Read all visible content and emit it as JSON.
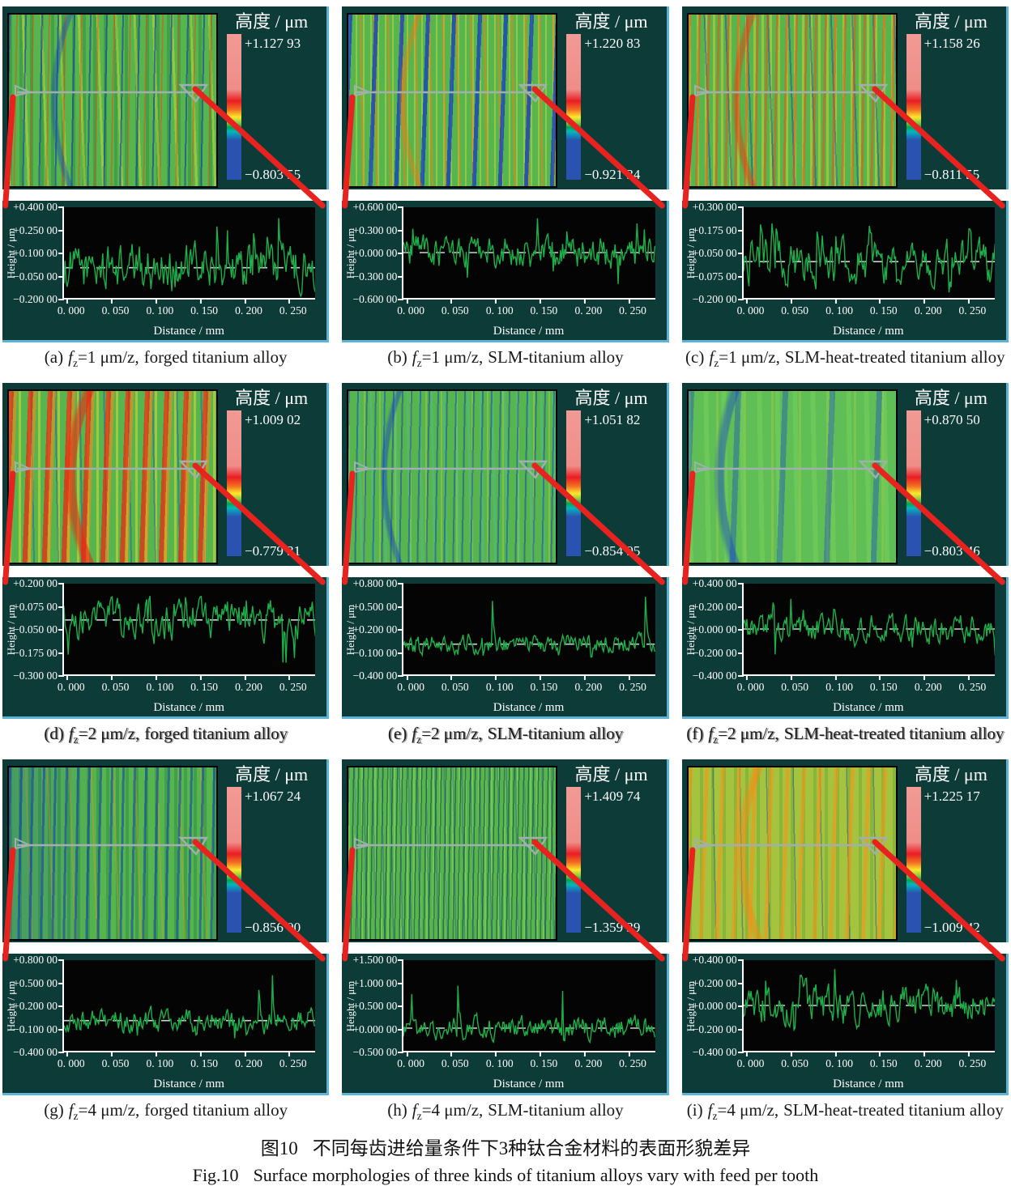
{
  "figure": {
    "caption_zh_label": "图10",
    "caption_zh_text": "不同每齿进给量条件下3种钛合金材料的表面形貌差异",
    "caption_en_label": "Fig.10",
    "caption_en_text": "Surface morphologies of three kinds of titanium alloys vary with feed per tooth"
  },
  "symbols": {
    "f": "f",
    "fsub": "z"
  },
  "colors": {
    "panel_background": "#0c3b38",
    "plot_background": "#040404",
    "trace_green": "#1db04a",
    "connector_red": "#e8231f",
    "colorbar_top_pink": "#f29a95",
    "colorbar_bottom_blue": "#2a52b0",
    "panel_edge_blue": "#5cb3d6"
  },
  "panels": [
    {
      "label": "(a)",
      "feed": "=1 μm/z,",
      "material": "forged titanium alloy",
      "colorbar": {
        "title": "高度 / μm",
        "max": "+1.127 93",
        "min": "−0.803 55"
      },
      "profile": {
        "ylabel": "Height / μm",
        "xlabel": "Distance / mm",
        "yticks": [
          "+0.400 00",
          "+0.250 00",
          "+0.100 00",
          "−0.050 00",
          "−0.200 00"
        ],
        "xticks": [
          "0. 000",
          "0. 050",
          "0. 100",
          "0. 150",
          "0. 200",
          "0. 250"
        ],
        "ylim": [
          0.4,
          -0.2
        ],
        "amp": 0.09,
        "peak_up": 0.33,
        "peak_down": 0.18
      }
    },
    {
      "label": "(b)",
      "feed": "=1 μm/z,",
      "material": "SLM-titanium alloy",
      "colorbar": {
        "title": "高度 / μm",
        "max": "+1.220 83",
        "min": "−0.921 34"
      },
      "profile": {
        "ylabel": "Height / μm",
        "xlabel": "Distance / mm",
        "yticks": [
          "+0.600 00",
          "+0.300 00",
          "+0.000 00",
          "−0.300 00",
          "−0.600 00"
        ],
        "xticks": [
          "0. 000",
          "0. 050",
          "0. 100",
          "0. 150",
          "0. 200",
          "0. 250"
        ],
        "ylim": [
          0.6,
          -0.6
        ],
        "amp": 0.13,
        "peak_up": 0.46,
        "peak_down": 0.45
      }
    },
    {
      "label": "(c)",
      "feed": "=1 μm/z,",
      "material": "SLM-heat-treated titanium alloy",
      "colorbar": {
        "title": "高度 / μm",
        "max": "+1.158 26",
        "min": "−0.811 55"
      },
      "profile": {
        "ylabel": "Height / μm",
        "xlabel": "Distance / mm",
        "yticks": [
          "+0.300 00",
          "+0.175 00",
          "+0.050 00",
          "−0.075 00",
          "−0.200 00"
        ],
        "xticks": [
          "0. 000",
          "0. 050",
          "0. 100",
          "0. 150",
          "0. 200",
          "0. 250"
        ],
        "ylim": [
          0.3,
          -0.2
        ],
        "amp": 0.07,
        "peak_up": 0.25,
        "peak_down": 0.17
      }
    },
    {
      "label": "(d)",
      "feed": "=2 μm/z,",
      "material": "forged titanium alloy",
      "colorbar": {
        "title": "高度 / μm",
        "max": "+1.009 02",
        "min": "−0.779 31"
      },
      "profile": {
        "ylabel": "Height / μm",
        "xlabel": "Distance / mm",
        "yticks": [
          "+0.200 00",
          "+0.075 00",
          "−0.050 00",
          "−0.175 00",
          "−0.300 00"
        ],
        "xticks": [
          "0. 000",
          "0. 050",
          "0. 100",
          "0. 150",
          "0. 200",
          "0. 250"
        ],
        "ylim": [
          0.2,
          -0.3
        ],
        "amp": 0.06,
        "peak_up": 0.13,
        "peak_down": 0.24
      }
    },
    {
      "label": "(e)",
      "feed": "=2 μm/z,",
      "material": "SLM-titanium alloy",
      "colorbar": {
        "title": "高度 / μm",
        "max": "+1.051 82",
        "min": "−0.854 95"
      },
      "profile": {
        "ylabel": "Height / μm",
        "xlabel": "Distance / mm",
        "yticks": [
          "+0.800 00",
          "+0.500 00",
          "+0.200 00",
          "−0.100 00",
          "−0.400 00"
        ],
        "xticks": [
          "0. 000",
          "0. 050",
          "0. 100",
          "0. 150",
          "0. 200",
          "0. 250"
        ],
        "ylim": [
          0.8,
          -0.4
        ],
        "amp": 0.08,
        "peak_up": 0.66,
        "peak_down": 0.2
      }
    },
    {
      "label": "(f)",
      "feed": "=2 μm/z,",
      "material": "SLM-heat-treated titanium alloy",
      "colorbar": {
        "title": "高度 / μm",
        "max": "+0.870 50",
        "min": "−0.803 46"
      },
      "profile": {
        "ylabel": "Height / μm",
        "xlabel": "Distance / mm",
        "yticks": [
          "+0.400 00",
          "+0.200 00",
          "+0.000 00",
          "−0.200 00",
          "−0.400 00"
        ],
        "xticks": [
          "0. 000",
          "0. 050",
          "0. 100",
          "0. 150",
          "0. 200",
          "0. 250"
        ],
        "ylim": [
          0.4,
          -0.4
        ],
        "amp": 0.07,
        "peak_up": 0.29,
        "peak_down": 0.27
      }
    },
    {
      "label": "(g)",
      "feed": "=4 μm/z,",
      "material": "forged titanium alloy",
      "colorbar": {
        "title": "高度 / μm",
        "max": "+1.067 24",
        "min": "−0.856 00"
      },
      "profile": {
        "ylabel": "Height / μm",
        "xlabel": "Distance / mm",
        "yticks": [
          "+0.800 00",
          "+0.500 00",
          "+0.200 00",
          "−0.100 00",
          "−0.400 00"
        ],
        "xticks": [
          "0. 000",
          "0. 050",
          "0. 100",
          "0. 150",
          "0. 200",
          "0. 250"
        ],
        "ylim": [
          0.8,
          -0.4
        ],
        "amp": 0.09,
        "peak_up": 0.62,
        "peak_down": 0.25
      }
    },
    {
      "label": "(h)",
      "feed": "=4 μm/z,",
      "material": "SLM-titanium alloy",
      "colorbar": {
        "title": "高度 / μm",
        "max": "+1.409 74",
        "min": "−1.359 39"
      },
      "profile": {
        "ylabel": "Height / μm",
        "xlabel": "Distance / mm",
        "yticks": [
          "+1.500 00",
          "+1.000 00",
          "+0.500 00",
          "+0.000 00",
          "−0.500 00"
        ],
        "xticks": [
          "0. 000",
          "0. 050",
          "0. 100",
          "0. 150",
          "0. 200",
          "0. 250"
        ],
        "ylim": [
          1.5,
          -0.5
        ],
        "amp": 0.15,
        "peak_up": 1.0,
        "peak_down": 0.34
      }
    },
    {
      "label": "(i)",
      "feed": "=4 μm/z,",
      "material": "SLM-heat-treated titanium alloy",
      "colorbar": {
        "title": "高度 / μm",
        "max": "+1.225 17",
        "min": "−1.009 42"
      },
      "profile": {
        "ylabel": "Height / μm",
        "xlabel": "Distance / mm",
        "yticks": [
          "+0.400 00",
          "+0.200 00",
          "+0.000 00",
          "−0.200 00",
          "−0.400 00"
        ],
        "xticks": [
          "0. 000",
          "0. 050",
          "0. 100",
          "0. 150",
          "0. 200",
          "0. 250"
        ],
        "ylim": [
          0.4,
          -0.4
        ],
        "amp": 0.1,
        "peak_up": 0.33,
        "peak_down": 0.27
      }
    }
  ],
  "chart_data": [
    {
      "type": "line",
      "id": "a",
      "title": "(a) fz=1 μm/z, forged titanium alloy",
      "xlabel": "Distance / mm",
      "ylabel": "Height / μm",
      "xlim": [
        0,
        0.285
      ],
      "ylim": [
        -0.2,
        0.4
      ],
      "xticks": [
        0,
        0.05,
        0.1,
        0.15,
        0.2,
        0.25
      ],
      "yticks": [
        0.4,
        0.25,
        0.1,
        -0.05,
        -0.2
      ],
      "mean_line": 0,
      "surface_height_max_um": 1.12793,
      "surface_height_min_um": -0.80355
    },
    {
      "type": "line",
      "id": "b",
      "title": "(b) fz=1 μm/z, SLM-titanium alloy",
      "xlabel": "Distance / mm",
      "ylabel": "Height / μm",
      "xlim": [
        0,
        0.285
      ],
      "ylim": [
        -0.6,
        0.6
      ],
      "xticks": [
        0,
        0.05,
        0.1,
        0.15,
        0.2,
        0.25
      ],
      "yticks": [
        0.6,
        0.3,
        0,
        -0.3,
        -0.6
      ],
      "mean_line": 0,
      "surface_height_max_um": 1.22083,
      "surface_height_min_um": -0.92134
    },
    {
      "type": "line",
      "id": "c",
      "title": "(c) fz=1 μm/z, SLM-heat-treated titanium alloy",
      "xlabel": "Distance / mm",
      "ylabel": "Height / μm",
      "xlim": [
        0,
        0.285
      ],
      "ylim": [
        -0.2,
        0.3
      ],
      "xticks": [
        0,
        0.05,
        0.1,
        0.15,
        0.2,
        0.25
      ],
      "yticks": [
        0.3,
        0.175,
        0.05,
        -0.075,
        -0.2
      ],
      "mean_line": 0,
      "surface_height_max_um": 1.15826,
      "surface_height_min_um": -0.81155
    },
    {
      "type": "line",
      "id": "d",
      "title": "(d) fz=2 μm/z, forged titanium alloy",
      "xlabel": "Distance / mm",
      "ylabel": "Height / μm",
      "xlim": [
        0,
        0.285
      ],
      "ylim": [
        -0.3,
        0.2
      ],
      "xticks": [
        0,
        0.05,
        0.1,
        0.15,
        0.2,
        0.25
      ],
      "yticks": [
        0.2,
        0.075,
        -0.05,
        -0.175,
        -0.3
      ],
      "mean_line": 0,
      "surface_height_max_um": 1.00902,
      "surface_height_min_um": -0.77931
    },
    {
      "type": "line",
      "id": "e",
      "title": "(e) fz=2 μm/z, SLM-titanium alloy",
      "xlabel": "Distance / mm",
      "ylabel": "Height / μm",
      "xlim": [
        0,
        0.285
      ],
      "ylim": [
        -0.4,
        0.8
      ],
      "xticks": [
        0,
        0.05,
        0.1,
        0.15,
        0.2,
        0.25
      ],
      "yticks": [
        0.8,
        0.5,
        0.2,
        -0.1,
        -0.4
      ],
      "mean_line": 0,
      "surface_height_max_um": 1.05182,
      "surface_height_min_um": -0.85495
    },
    {
      "type": "line",
      "id": "f",
      "title": "(f) fz=2 μm/z, SLM-heat-treated titanium alloy",
      "xlabel": "Distance / mm",
      "ylabel": "Height / μm",
      "xlim": [
        0,
        0.285
      ],
      "ylim": [
        -0.4,
        0.4
      ],
      "xticks": [
        0,
        0.05,
        0.1,
        0.15,
        0.2,
        0.25
      ],
      "yticks": [
        0.4,
        0.2,
        0,
        -0.2,
        -0.4
      ],
      "mean_line": 0,
      "surface_height_max_um": 0.8705,
      "surface_height_min_um": -0.80346
    },
    {
      "type": "line",
      "id": "g",
      "title": "(g) fz=4 μm/z, forged titanium alloy",
      "xlabel": "Distance / mm",
      "ylabel": "Height / μm",
      "xlim": [
        0,
        0.285
      ],
      "ylim": [
        -0.4,
        0.8
      ],
      "xticks": [
        0,
        0.05,
        0.1,
        0.15,
        0.2,
        0.25
      ],
      "yticks": [
        0.8,
        0.5,
        0.2,
        -0.1,
        -0.4
      ],
      "mean_line": 0,
      "surface_height_max_um": 1.06724,
      "surface_height_min_um": -0.856
    },
    {
      "type": "line",
      "id": "h",
      "title": "(h) fz=4 μm/z, SLM-titanium alloy",
      "xlabel": "Distance / mm",
      "ylabel": "Height / μm",
      "xlim": [
        0,
        0.285
      ],
      "ylim": [
        -0.5,
        1.5
      ],
      "xticks": [
        0,
        0.05,
        0.1,
        0.15,
        0.2,
        0.25
      ],
      "yticks": [
        1.5,
        1.0,
        0.5,
        0,
        -0.5
      ],
      "mean_line": 0,
      "surface_height_max_um": 1.40974,
      "surface_height_min_um": -1.35939
    },
    {
      "type": "line",
      "id": "i",
      "title": "(i) fz=4 μm/z, SLM-heat-treated titanium alloy",
      "xlabel": "Distance / mm",
      "ylabel": "Height / μm",
      "xlim": [
        0,
        0.285
      ],
      "ylim": [
        -0.4,
        0.4
      ],
      "xticks": [
        0,
        0.05,
        0.1,
        0.15,
        0.2,
        0.25
      ],
      "yticks": [
        0.4,
        0.2,
        0,
        -0.2,
        -0.4
      ],
      "mean_line": 0,
      "surface_height_max_um": 1.22517,
      "surface_height_min_um": -1.00942
    }
  ]
}
